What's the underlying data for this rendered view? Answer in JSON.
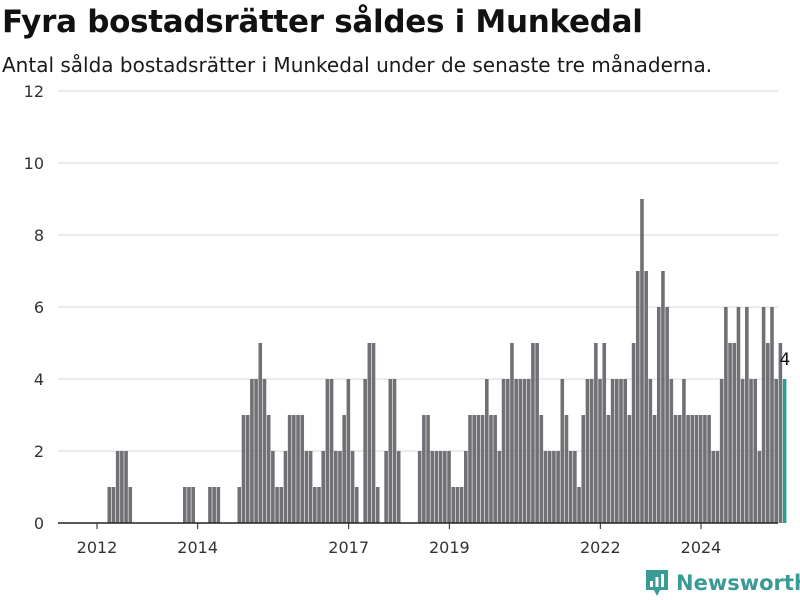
{
  "header": {
    "title": "Fyra bostadsrätter såldes i Munkedal",
    "subtitle": "Antal sålda bostadsrätter i Munkedal under de senaste tre månaderna."
  },
  "brand": {
    "name": "Newsworthy"
  },
  "chart_data": {
    "type": "bar",
    "title": "Fyra bostadsrätter såldes i Munkedal",
    "subtitle": "Antal sålda bostadsrätter i Munkedal under de senaste tre månaderna.",
    "xlabel": "",
    "ylabel": "",
    "ylim": [
      0,
      12
    ],
    "yticks": [
      0,
      2,
      4,
      6,
      8,
      10,
      12
    ],
    "xtick_labels": [
      "2012",
      "2014",
      "2017",
      "2019",
      "2022",
      "2024"
    ],
    "xtick_positions": [
      2012.0,
      2014.0,
      2017.0,
      2019.0,
      2022.0,
      2024.0
    ],
    "grid": true,
    "legend": "none",
    "colors": {
      "bar": "#707075",
      "highlight": "#2a9d8f",
      "grid": "#d9d9d9",
      "axis": "#222222"
    },
    "period_step_years": 0.0833333,
    "start_period": 2011.375,
    "values": [
      0,
      0,
      0,
      0,
      0,
      0,
      0,
      0,
      0,
      0,
      1,
      1,
      2,
      2,
      2,
      1,
      0,
      0,
      0,
      0,
      0,
      0,
      0,
      0,
      0,
      0,
      0,
      0,
      1,
      1,
      1,
      0,
      0,
      0,
      1,
      1,
      1,
      0,
      0,
      0,
      0,
      1,
      3,
      3,
      4,
      4,
      5,
      4,
      3,
      2,
      1,
      1,
      2,
      3,
      3,
      3,
      3,
      2,
      2,
      1,
      1,
      2,
      4,
      4,
      2,
      2,
      3,
      4,
      2,
      1,
      0,
      4,
      5,
      5,
      1,
      0,
      2,
      4,
      4,
      2,
      0,
      0,
      0,
      0,
      2,
      3,
      3,
      2,
      2,
      2,
      2,
      2,
      1,
      1,
      1,
      2,
      3,
      3,
      3,
      3,
      4,
      3,
      3,
      2,
      4,
      4,
      5,
      4,
      4,
      4,
      4,
      5,
      5,
      3,
      2,
      2,
      2,
      2,
      4,
      3,
      2,
      2,
      1,
      3,
      4,
      4,
      5,
      4,
      5,
      3,
      4,
      4,
      4,
      4,
      3,
      5,
      7,
      9,
      7,
      4,
      3,
      6,
      7,
      6,
      4,
      3,
      3,
      4,
      3,
      3,
      3,
      3,
      3,
      3,
      2,
      2,
      4,
      6,
      5,
      5,
      6,
      4,
      6,
      4,
      4,
      2,
      6,
      5,
      6,
      4,
      5,
      4
    ],
    "highlight_last": true,
    "annotation": {
      "text": "4",
      "target": "last"
    }
  }
}
